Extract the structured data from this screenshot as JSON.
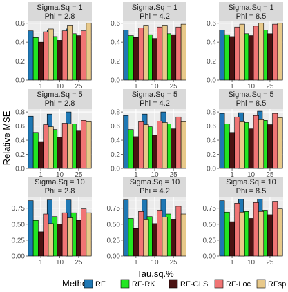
{
  "chart_data": {
    "type": "bar",
    "xlabel": "Tau.sq.%",
    "ylabel": "Relative MSE",
    "categories": [
      "1",
      "10",
      "25"
    ],
    "legend": {
      "title": "Method",
      "position": "bottom",
      "entries": [
        "RF",
        "RF-RK",
        "RF-GLS",
        "RF-Loc",
        "RFsp"
      ]
    },
    "colors": {
      "RF": "#1f78b4",
      "RF-RK": "#22e622",
      "RF-GLS": "#4a1212",
      "RF-Loc": "#f07575",
      "RFsp": "#e8c98a"
    },
    "grid": true,
    "row_scales": [
      {
        "ylim": [
          0,
          0.62
        ],
        "ticks": [
          0.0,
          0.2,
          0.4,
          0.6
        ],
        "tick_labels": [
          "0.0",
          "0.2",
          "0.4",
          "0.6"
        ]
      },
      {
        "ylim": [
          0,
          0.84
        ],
        "ticks": [
          0.0,
          0.2,
          0.4,
          0.6,
          0.8
        ],
        "tick_labels": [
          "0.0",
          "0.2",
          "0.4",
          "0.6",
          "0.8"
        ]
      },
      {
        "ylim": [
          0,
          0.92
        ],
        "ticks": [
          0.0,
          0.25,
          0.5,
          0.75
        ],
        "tick_labels": [
          "0.00",
          "0.25",
          "0.50",
          "0.75"
        ]
      }
    ],
    "panels": [
      {
        "strip": [
          "Sigma.Sq = 1",
          "Phi = 2.8"
        ],
        "row": 0,
        "col": 0,
        "series": [
          {
            "name": "RF",
            "values": [
              0.52,
              0.53,
              0.54
            ]
          },
          {
            "name": "RF-RK",
            "values": [
              0.45,
              0.46,
              0.49
            ]
          },
          {
            "name": "RF-GLS",
            "values": [
              0.4,
              0.42,
              0.47
            ]
          },
          {
            "name": "RF-Loc",
            "values": [
              0.51,
              0.52,
              0.52
            ]
          },
          {
            "name": "RFsp",
            "values": [
              0.54,
              0.58,
              0.6
            ]
          }
        ]
      },
      {
        "strip": [
          "Sigma.Sq = 1",
          "Phi = 4.2"
        ],
        "row": 0,
        "col": 1,
        "series": [
          {
            "name": "RF",
            "values": [
              0.53,
              0.54,
              0.55
            ]
          },
          {
            "name": "RF-RK",
            "values": [
              0.47,
              0.48,
              0.49
            ]
          },
          {
            "name": "RF-GLS",
            "values": [
              0.45,
              0.44,
              0.48
            ]
          },
          {
            "name": "RF-Loc",
            "values": [
              0.55,
              0.56,
              0.56
            ]
          },
          {
            "name": "RFsp",
            "values": [
              0.58,
              0.58,
              0.59
            ]
          }
        ]
      },
      {
        "strip": [
          "Sigma.Sq = 1",
          "Phi = 8.5"
        ],
        "row": 0,
        "col": 2,
        "series": [
          {
            "name": "RF",
            "values": [
              0.53,
              0.54,
              0.55
            ]
          },
          {
            "name": "RF-RK",
            "values": [
              0.48,
              0.49,
              0.53
            ]
          },
          {
            "name": "RF-GLS",
            "values": [
              0.46,
              0.47,
              0.49
            ]
          },
          {
            "name": "RF-Loc",
            "values": [
              0.56,
              0.57,
              0.59
            ]
          },
          {
            "name": "RFsp",
            "values": [
              0.59,
              0.6,
              0.6
            ]
          }
        ]
      },
      {
        "strip": [
          "Sigma.Sq = 5",
          "Phi = 2.8"
        ],
        "row": 1,
        "col": 0,
        "series": [
          {
            "name": "RF",
            "values": [
              0.74,
              0.77,
              0.8
            ]
          },
          {
            "name": "RF-RK",
            "values": [
              0.51,
              0.55,
              0.63
            ]
          },
          {
            "name": "RF-GLS",
            "values": [
              0.38,
              0.44,
              0.53
            ]
          },
          {
            "name": "RF-Loc",
            "values": [
              0.62,
              0.64,
              0.68
            ]
          },
          {
            "name": "RFsp",
            "values": [
              0.59,
              0.63,
              0.66
            ]
          }
        ]
      },
      {
        "strip": [
          "Sigma.Sq = 5",
          "Phi = 4.2"
        ],
        "row": 1,
        "col": 1,
        "series": [
          {
            "name": "RF",
            "values": [
              0.75,
              0.77,
              0.8
            ]
          },
          {
            "name": "RF-RK",
            "values": [
              0.55,
              0.59,
              0.63
            ]
          },
          {
            "name": "RF-GLS",
            "values": [
              0.45,
              0.47,
              0.56
            ]
          },
          {
            "name": "RF-Loc",
            "values": [
              0.66,
              0.67,
              0.73
            ]
          },
          {
            "name": "RFsp",
            "values": [
              0.62,
              0.65,
              0.66
            ]
          }
        ]
      },
      {
        "strip": [
          "Sigma.Sq = 5",
          "Phi = 8.5"
        ],
        "row": 1,
        "col": 2,
        "series": [
          {
            "name": "RF",
            "values": [
              0.78,
              0.79,
              0.81
            ]
          },
          {
            "name": "RF-RK",
            "values": [
              0.63,
              0.65,
              0.68
            ]
          },
          {
            "name": "RF-GLS",
            "values": [
              0.51,
              0.56,
              0.62
            ]
          },
          {
            "name": "RF-Loc",
            "values": [
              0.73,
              0.75,
              0.78
            ]
          },
          {
            "name": "RFsp",
            "values": [
              0.66,
              0.69,
              0.72
            ]
          }
        ]
      },
      {
        "strip": [
          "Sigma.Sq = 10",
          "Phi = 2.8"
        ],
        "row": 2,
        "col": 0,
        "series": [
          {
            "name": "RF",
            "values": [
              0.87,
              0.88,
              0.88
            ]
          },
          {
            "name": "RF-RK",
            "values": [
              0.56,
              0.62,
              0.68
            ]
          },
          {
            "name": "RF-GLS",
            "values": [
              0.38,
              0.5,
              0.56
            ]
          },
          {
            "name": "RF-Loc",
            "values": [
              0.66,
              0.68,
              0.74
            ]
          },
          {
            "name": "RFsp",
            "values": [
              0.51,
              0.6,
              0.68
            ]
          }
        ]
      },
      {
        "strip": [
          "Sigma.Sq = 10",
          "Phi = 4.2"
        ],
        "row": 2,
        "col": 1,
        "series": [
          {
            "name": "RF",
            "values": [
              0.88,
              0.88,
              0.89
            ]
          },
          {
            "name": "RF-RK",
            "values": [
              0.59,
              0.62,
              0.66
            ]
          },
          {
            "name": "RF-GLS",
            "values": [
              0.43,
              0.51,
              0.58
            ]
          },
          {
            "name": "RF-Loc",
            "values": [
              0.7,
              0.72,
              0.78
            ]
          },
          {
            "name": "RFsp",
            "values": [
              0.58,
              0.61,
              0.66
            ]
          }
        ]
      },
      {
        "strip": [
          "Sigma.Sq = 10",
          "Phi = 8.5"
        ],
        "row": 2,
        "col": 2,
        "series": [
          {
            "name": "RF",
            "values": [
              0.87,
              0.89,
              0.89
            ]
          },
          {
            "name": "RF-RK",
            "values": [
              0.69,
              0.7,
              0.72
            ]
          },
          {
            "name": "RF-GLS",
            "values": [
              0.54,
              0.59,
              0.65
            ]
          },
          {
            "name": "RF-Loc",
            "values": [
              0.83,
              0.84,
              0.86
            ]
          },
          {
            "name": "RFsp",
            "values": [
              0.69,
              0.7,
              0.74
            ]
          }
        ]
      }
    ]
  }
}
